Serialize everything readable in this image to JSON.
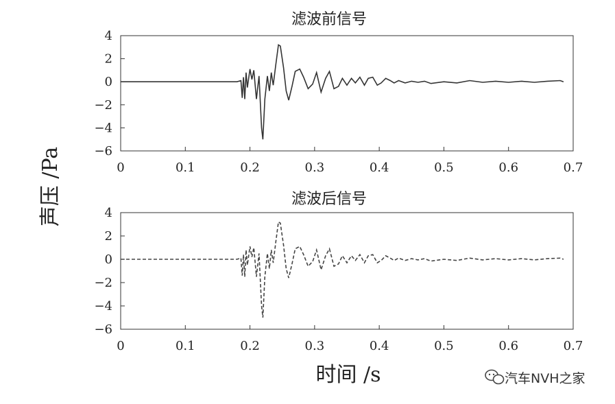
{
  "chart_data": [
    {
      "type": "line",
      "title": "滤波前信号",
      "xlim": [
        0,
        0.7
      ],
      "ylim": [
        -6,
        4
      ],
      "x_ticks": [
        "0",
        "0.1",
        "0.2",
        "0.3",
        "0.4",
        "0.5",
        "0.6",
        "0.7"
      ],
      "y_ticks": [
        "4",
        "2",
        "0",
        "−2",
        "−4",
        "−6"
      ],
      "line_style": "solid",
      "series": [
        {
          "x": [
            0,
            0.18,
            0.186,
            0.188,
            0.19,
            0.192,
            0.194,
            0.196,
            0.2,
            0.203,
            0.206,
            0.21,
            0.214,
            0.218,
            0.22,
            0.223,
            0.227,
            0.23,
            0.233,
            0.236,
            0.24,
            0.244,
            0.247,
            0.252,
            0.256,
            0.26,
            0.265,
            0.27,
            0.277,
            0.283,
            0.29,
            0.297,
            0.303,
            0.31,
            0.317,
            0.323,
            0.33,
            0.337,
            0.343,
            0.35,
            0.357,
            0.363,
            0.37,
            0.377,
            0.383,
            0.39,
            0.397,
            0.403,
            0.41,
            0.417,
            0.423,
            0.43,
            0.44,
            0.45,
            0.46,
            0.47,
            0.48,
            0.5,
            0.52,
            0.54,
            0.56,
            0.58,
            0.6,
            0.62,
            0.64,
            0.66,
            0.68,
            0.685
          ],
          "y": [
            0,
            0,
            0.1,
            -1.4,
            0.4,
            -1.5,
            0.8,
            -0.5,
            1.1,
            0.2,
            1.0,
            -1.5,
            0.5,
            -4.0,
            -5.0,
            -1.5,
            0.5,
            -0.8,
            0.8,
            -0.3,
            1.5,
            3.2,
            3.1,
            1.2,
            -0.8,
            -1.6,
            -0.4,
            0.9,
            1.1,
            0.4,
            -0.6,
            -0.2,
            0.8,
            -0.9,
            0.3,
            0.9,
            -0.6,
            -0.4,
            0.3,
            -0.3,
            0.3,
            -0.1,
            0.4,
            -0.3,
            0.3,
            0.4,
            -0.3,
            -0.1,
            0.3,
            0.1,
            -0.1,
            0.1,
            -0.1,
            0.05,
            -0.05,
            0.05,
            -0.15,
            0,
            -0.1,
            0.1,
            -0.05,
            0.05,
            -0.05,
            0.05,
            -0.05,
            0.05,
            0.1,
            0
          ]
        }
      ]
    },
    {
      "type": "line",
      "title": "滤波后信号",
      "xlim": [
        0,
        0.7
      ],
      "ylim": [
        -6,
        4
      ],
      "x_ticks": [
        "0",
        "0.1",
        "0.2",
        "0.3",
        "0.4",
        "0.5",
        "0.6",
        "0.7"
      ],
      "y_ticks": [
        "4",
        "2",
        "0",
        "−2",
        "−4",
        "−6"
      ],
      "line_style": "dashed",
      "series": [
        {
          "x": [
            0,
            0.18,
            0.186,
            0.188,
            0.19,
            0.192,
            0.194,
            0.196,
            0.2,
            0.203,
            0.206,
            0.21,
            0.214,
            0.218,
            0.22,
            0.223,
            0.227,
            0.23,
            0.233,
            0.236,
            0.24,
            0.244,
            0.247,
            0.252,
            0.256,
            0.26,
            0.265,
            0.27,
            0.277,
            0.283,
            0.29,
            0.297,
            0.303,
            0.31,
            0.317,
            0.323,
            0.33,
            0.337,
            0.343,
            0.35,
            0.357,
            0.363,
            0.37,
            0.377,
            0.383,
            0.39,
            0.397,
            0.403,
            0.41,
            0.417,
            0.423,
            0.43,
            0.44,
            0.45,
            0.46,
            0.47,
            0.48,
            0.5,
            0.52,
            0.54,
            0.56,
            0.58,
            0.6,
            0.62,
            0.64,
            0.66,
            0.68,
            0.685
          ],
          "y": [
            0,
            0,
            0.1,
            -1.4,
            0.4,
            -1.5,
            0.8,
            -0.5,
            1.1,
            0.2,
            1.0,
            -1.5,
            0.5,
            -4.0,
            -5.0,
            -1.5,
            0.5,
            -0.8,
            0.8,
            -0.3,
            1.5,
            3.2,
            3.1,
            1.2,
            -0.8,
            -1.6,
            -0.4,
            0.9,
            1.1,
            0.4,
            -0.6,
            -0.2,
            0.8,
            -0.9,
            0.3,
            0.9,
            -0.6,
            -0.4,
            0.3,
            -0.3,
            0.3,
            -0.1,
            0.4,
            -0.3,
            0.3,
            0.4,
            -0.3,
            -0.1,
            0.3,
            0.1,
            -0.1,
            0.1,
            -0.1,
            0.05,
            -0.05,
            0.05,
            -0.15,
            0,
            -0.1,
            0.1,
            -0.05,
            0.05,
            -0.05,
            0.05,
            -0.05,
            0.05,
            0.1,
            0
          ]
        }
      ]
    }
  ],
  "shared_ylabel": "声压 /Pa",
  "shared_xlabel": "时间 /s",
  "watermark": {
    "text": "汽车NVH之家",
    "icon": "wechat-icon"
  }
}
